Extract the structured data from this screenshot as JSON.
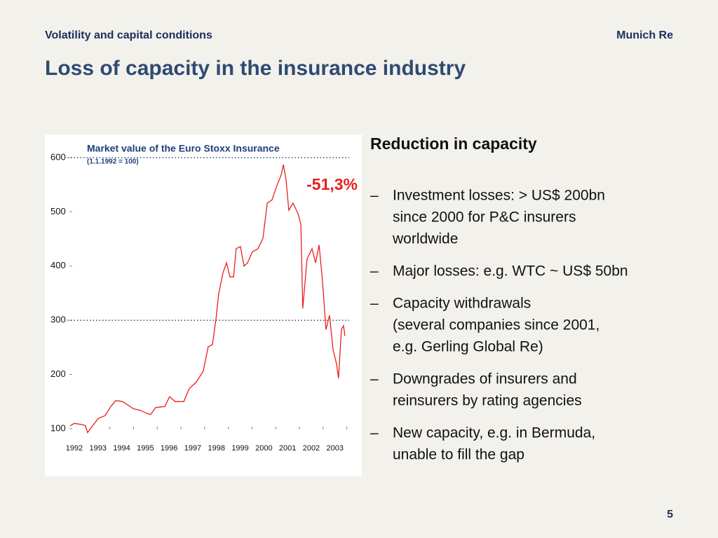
{
  "header": {
    "section": "Volatility and capital conditions",
    "company": "Munich Re",
    "title": "Loss of capacity in the insurance industry"
  },
  "panel": {
    "heading": "Reduction in capacity",
    "bullet_marker": "–",
    "bullets": [
      [
        "Investment losses: > US$ 200bn",
        "since 2000 for P&C insurers",
        "worldwide"
      ],
      [
        "Major losses: e.g. WTC ~ US$ 50bn"
      ],
      [
        "Capacity withdrawals",
        "(several companies since 2001,",
        "e.g. Gerling Global Re)"
      ],
      [
        "Downgrades of insurers and",
        "reinsurers by rating agencies"
      ],
      [
        "New capacity, e.g. in Bermuda,",
        "unable to fill the gap"
      ]
    ]
  },
  "page_number": "5",
  "chart_data": {
    "type": "line",
    "title": "Market value of the Euro Stoxx Insurance",
    "subtitle": "(1.1.1992 = 100)",
    "annotation": "-51,3%",
    "color": "#e8201e",
    "annotation_color": "#e8201e",
    "x": [
      1991.82,
      1992.0,
      1992.27,
      1992.47,
      1992.56,
      1992.71,
      1993.01,
      1993.3,
      1993.54,
      1993.75,
      1994.04,
      1994.25,
      1994.49,
      1994.78,
      1995.08,
      1995.22,
      1995.43,
      1995.82,
      1996.02,
      1996.26,
      1996.62,
      1996.85,
      1997.15,
      1997.44,
      1997.65,
      1997.83,
      1997.98,
      1998.09,
      1998.27,
      1998.42,
      1998.57,
      1998.72,
      1998.83,
      1999.01,
      1999.16,
      1999.31,
      1999.51,
      1999.75,
      1999.96,
      2000.14,
      2000.34,
      2000.55,
      2000.73,
      2000.82,
      2000.93,
      2001.05,
      2001.23,
      2001.44,
      2001.56,
      2001.64,
      2001.82,
      2002.03,
      2002.18,
      2002.33,
      2002.47,
      2002.62,
      2002.77,
      2002.92,
      2003.07,
      2003.15,
      2003.27,
      2003.36,
      2003.42
    ],
    "values": [
      105,
      110,
      108,
      106,
      93,
      102,
      119,
      124,
      141,
      152,
      150,
      144,
      137,
      134,
      128,
      126,
      139,
      141,
      159,
      150,
      150,
      174,
      186,
      206,
      251,
      255,
      303,
      348,
      387,
      406,
      380,
      380,
      432,
      436,
      400,
      406,
      426,
      432,
      451,
      516,
      522,
      548,
      568,
      587,
      561,
      503,
      516,
      497,
      477,
      322,
      413,
      432,
      406,
      439,
      374,
      283,
      309,
      245,
      219,
      193,
      283,
      290,
      271
    ],
    "xlim": [
      1991.8,
      2003.8
    ],
    "xticks": [
      1992,
      1993,
      1994,
      1995,
      1996,
      1997,
      1998,
      1999,
      2000,
      2001,
      2002,
      2003
    ],
    "ylim": [
      100,
      600
    ],
    "yticks": [
      100,
      200,
      300,
      400,
      500,
      600
    ],
    "reference_lines": [
      600,
      300
    ],
    "reference_color": "#2a4a7a"
  }
}
